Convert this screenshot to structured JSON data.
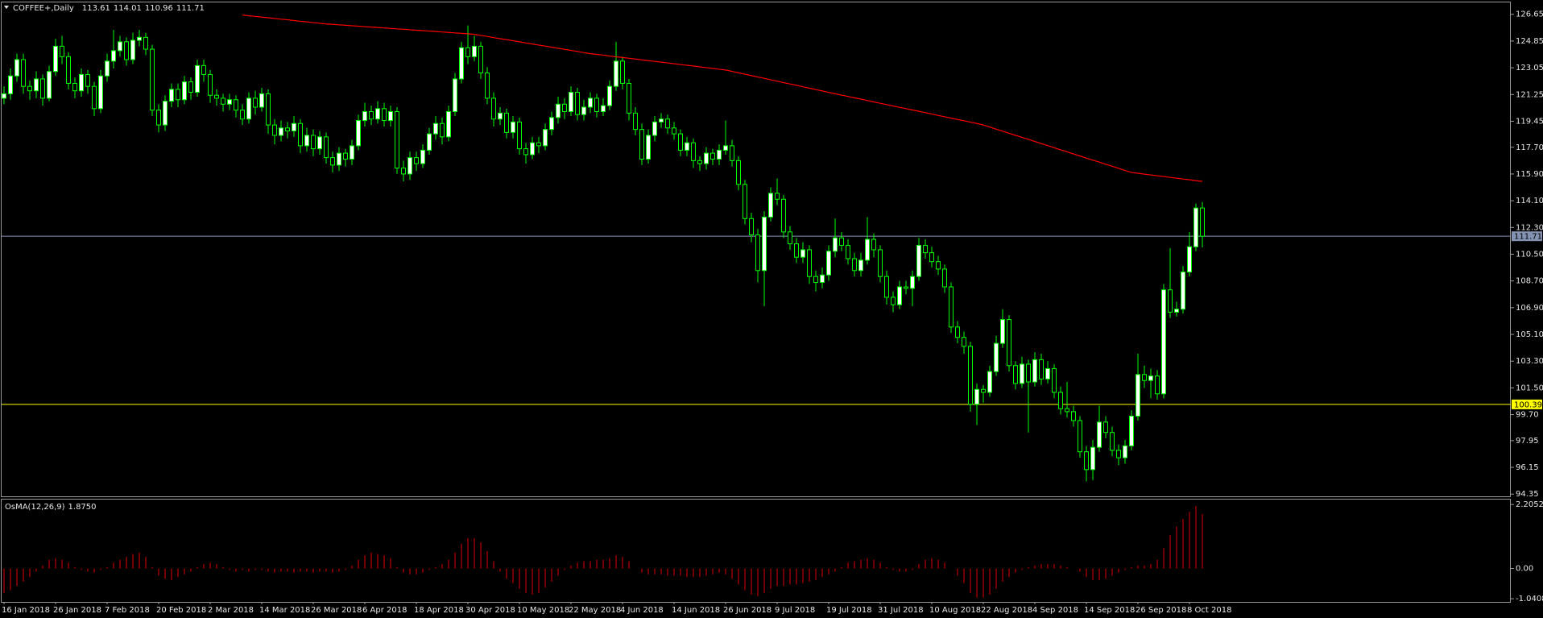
{
  "chart_data": {
    "type": "candlestick",
    "title": "COFFEE+,Daily",
    "categories": [
      "16 Jan 2018",
      null,
      null,
      null,
      null,
      null,
      null,
      null,
      "26 Jan 2018",
      null,
      null,
      null,
      null,
      null,
      null,
      null,
      "7 Feb 2018",
      null,
      null,
      null,
      null,
      null,
      null,
      null,
      "20 Feb 2018",
      null,
      null,
      null,
      null,
      null,
      null,
      null,
      "2 Mar 2018",
      null,
      null,
      null,
      null,
      null,
      null,
      null,
      "14 Mar 2018",
      null,
      null,
      null,
      null,
      null,
      null,
      null,
      "26 Mar 2018",
      null,
      null,
      null,
      null,
      null,
      null,
      null,
      "6 Apr 2018",
      null,
      null,
      null,
      null,
      null,
      null,
      null,
      "18 Apr 2018",
      null,
      null,
      null,
      null,
      null,
      null,
      null,
      "30 Apr 2018",
      null,
      null,
      null,
      null,
      null,
      null,
      null,
      "10 May 2018",
      null,
      null,
      null,
      null,
      null,
      null,
      null,
      "22 May 2018",
      null,
      null,
      null,
      null,
      null,
      null,
      null,
      "4 Jun 2018",
      null,
      null,
      null,
      null,
      null,
      null,
      null,
      "14 Jun 2018",
      null,
      null,
      null,
      null,
      null,
      null,
      null,
      "26 Jun 2018",
      null,
      null,
      null,
      null,
      null,
      null,
      null,
      "9 Jul 2018",
      null,
      null,
      null,
      null,
      null,
      null,
      null,
      "19 Jul 2018",
      null,
      null,
      null,
      null,
      null,
      null,
      null,
      "31 Jul 2018",
      null,
      null,
      null,
      null,
      null,
      null,
      null,
      "10 Aug 2018",
      null,
      null,
      null,
      null,
      null,
      null,
      null,
      "22 Aug 2018",
      null,
      null,
      null,
      null,
      null,
      null,
      null,
      "4 Sep 2018",
      null,
      null,
      null,
      null,
      null,
      null,
      null,
      "14 Sep 2018",
      null,
      null,
      null,
      null,
      null,
      null,
      null,
      "26 Sep 2018",
      null,
      null,
      null,
      null,
      null,
      null,
      null,
      "8 Oct 2018",
      null,
      null
    ],
    "open": [
      121.0,
      121.3,
      122.5,
      123.6,
      121.8,
      121.5,
      122.3,
      121.0,
      122.8,
      124.5,
      123.8,
      122.0,
      121.5,
      122.6,
      121.8,
      120.3,
      122.5,
      123.5,
      124.2,
      124.8,
      123.6,
      124.9,
      125.1,
      124.3,
      120.2,
      119.2,
      120.8,
      121.6,
      120.9,
      122.1,
      121.4,
      123.2,
      122.6,
      121.2,
      121.0,
      120.6,
      120.9,
      120.2,
      119.6,
      121.0,
      120.4,
      121.3,
      119.2,
      118.5,
      119.0,
      118.8,
      119.3,
      117.8,
      118.5,
      117.6,
      118.4,
      117.0,
      116.5,
      117.3,
      116.9,
      117.8,
      119.5,
      120.1,
      119.6,
      120.3,
      119.5,
      120.1,
      116.3,
      115.9,
      117.0,
      116.6,
      117.5,
      118.6,
      119.3,
      118.4,
      120.1,
      122.3,
      124.4,
      123.8,
      124.5,
      122.7,
      121.0,
      119.6,
      120.0,
      118.7,
      119.4,
      117.6,
      117.2,
      118.0,
      117.8,
      118.9,
      119.7,
      120.6,
      120.1,
      121.4,
      119.9,
      120.4,
      121.0,
      120.1,
      120.5,
      121.8,
      123.5,
      122.0,
      120.0,
      118.9,
      116.9,
      118.5,
      119.4,
      119.6,
      119.0,
      118.6,
      117.5,
      118.0,
      116.8,
      116.6,
      117.3,
      116.9,
      117.5,
      117.8,
      116.8,
      115.2,
      112.9,
      111.8,
      109.4,
      113.0,
      114.6,
      114.2,
      112.0,
      111.2,
      110.3,
      110.8,
      109.0,
      108.6,
      109.1,
      110.7,
      111.6,
      111.1,
      110.2,
      109.4,
      110.1,
      111.5,
      110.8,
      109.0,
      107.6,
      107.1,
      108.3,
      108.2,
      109.0,
      111.1,
      110.6,
      110.0,
      109.5,
      108.3,
      105.6,
      104.9,
      104.3,
      100.4,
      101.4,
      101.2,
      102.6,
      104.5,
      106.1,
      103.0,
      101.8,
      103.1,
      101.9,
      103.4,
      102.1,
      102.8,
      101.2,
      100.1,
      99.9,
      99.3,
      97.2,
      96.0,
      97.5,
      99.2,
      98.5,
      97.3,
      96.8,
      97.6,
      99.6,
      102.4,
      102.0,
      102.3,
      101.1,
      108.1,
      106.6,
      106.8,
      109.3,
      111.0,
      113.61
    ],
    "high": [
      121.8,
      123.0,
      124.0,
      124.0,
      122.2,
      122.8,
      122.6,
      123.2,
      125.0,
      125.2,
      124.1,
      122.4,
      123.0,
      122.9,
      122.1,
      122.9,
      124.0,
      125.6,
      125.2,
      125.1,
      125.4,
      125.6,
      125.4,
      124.6,
      120.6,
      121.2,
      122.0,
      122.0,
      122.5,
      122.4,
      123.6,
      123.6,
      122.9,
      121.6,
      121.3,
      121.3,
      121.2,
      120.6,
      121.4,
      121.5,
      121.7,
      121.6,
      119.6,
      119.5,
      119.4,
      119.8,
      119.6,
      119.0,
      118.9,
      118.8,
      118.7,
      117.4,
      117.7,
      117.6,
      118.2,
      119.9,
      120.7,
      120.5,
      120.8,
      120.7,
      120.5,
      120.4,
      116.8,
      117.4,
      117.4,
      117.9,
      119.0,
      119.8,
      119.7,
      120.5,
      122.7,
      124.8,
      125.9,
      125.2,
      124.8,
      123.1,
      121.4,
      120.4,
      120.3,
      119.8,
      119.7,
      118.0,
      118.4,
      118.4,
      119.3,
      120.1,
      121.1,
      121.0,
      121.8,
      121.7,
      120.9,
      121.4,
      121.3,
      121.0,
      122.2,
      124.8,
      123.8,
      122.3,
      120.4,
      119.3,
      118.9,
      119.8,
      120.0,
      119.9,
      119.4,
      118.9,
      118.4,
      118.3,
      117.1,
      117.7,
      117.6,
      117.9,
      119.5,
      118.2,
      117.1,
      115.5,
      113.3,
      112.2,
      113.4,
      115.0,
      115.6,
      114.5,
      112.4,
      111.6,
      111.3,
      111.1,
      109.4,
      109.6,
      111.1,
      112.9,
      112.0,
      111.5,
      110.6,
      110.6,
      113.0,
      111.9,
      111.1,
      109.4,
      108.0,
      108.7,
      108.7,
      109.4,
      111.6,
      111.5,
      111.0,
      110.4,
      109.8,
      108.6,
      106.0,
      105.3,
      104.6,
      101.8,
      101.7,
      103.0,
      105.0,
      106.8,
      106.4,
      103.3,
      103.6,
      103.4,
      103.9,
      103.8,
      103.3,
      103.1,
      101.6,
      101.9,
      100.3,
      99.6,
      97.6,
      98.0,
      100.3,
      99.6,
      98.9,
      97.7,
      98.0,
      100.0,
      103.8,
      103.0,
      102.8,
      102.7,
      108.5,
      110.9,
      107.3,
      109.7,
      112.0,
      113.9,
      114.01
    ],
    "low": [
      120.6,
      120.9,
      122.1,
      121.3,
      120.9,
      121.0,
      120.5,
      120.8,
      122.5,
      123.3,
      121.6,
      121.0,
      121.1,
      121.3,
      119.8,
      120.0,
      122.1,
      123.0,
      123.8,
      123.2,
      123.3,
      124.5,
      123.9,
      119.8,
      118.7,
      118.8,
      120.4,
      120.4,
      120.6,
      120.9,
      121.1,
      122.1,
      120.7,
      120.5,
      120.1,
      120.2,
      119.7,
      119.2,
      119.3,
      119.9,
      120.1,
      118.6,
      117.9,
      118.1,
      118.3,
      118.4,
      117.3,
      117.4,
      117.1,
      117.2,
      116.6,
      116.0,
      116.1,
      116.4,
      116.5,
      117.5,
      119.1,
      119.2,
      119.3,
      119.1,
      119.1,
      115.9,
      115.4,
      115.5,
      116.1,
      116.3,
      117.2,
      118.2,
      117.9,
      118.1,
      119.8,
      122.0,
      123.3,
      123.5,
      122.3,
      120.6,
      119.1,
      119.2,
      118.3,
      118.3,
      117.2,
      116.6,
      116.9,
      117.3,
      117.5,
      118.5,
      119.3,
      119.6,
      119.8,
      119.5,
      119.5,
      120.0,
      119.7,
      119.8,
      120.2,
      121.5,
      121.6,
      119.5,
      118.5,
      116.5,
      116.6,
      118.1,
      119.0,
      118.6,
      118.2,
      117.1,
      117.1,
      116.3,
      116.1,
      116.2,
      116.5,
      116.5,
      117.2,
      116.4,
      114.8,
      112.5,
      111.3,
      108.6,
      107.0,
      112.7,
      113.8,
      111.6,
      110.8,
      109.9,
      109.9,
      108.5,
      108.0,
      108.2,
      108.7,
      110.3,
      110.7,
      109.8,
      109.0,
      109.0,
      109.8,
      110.3,
      108.6,
      107.1,
      106.6,
      106.8,
      107.8,
      107.0,
      108.7,
      110.2,
      109.6,
      109.1,
      107.9,
      105.2,
      104.5,
      103.8,
      99.9,
      99.0,
      100.5,
      100.9,
      102.3,
      104.2,
      102.6,
      101.4,
      101.5,
      98.5,
      101.6,
      101.7,
      101.8,
      100.8,
      99.7,
      99.5,
      98.9,
      96.8,
      95.2,
      95.3,
      97.2,
      98.1,
      96.9,
      96.3,
      96.4,
      97.3,
      99.3,
      101.5,
      100.8,
      100.7,
      100.8,
      106.2,
      106.3,
      106.5,
      109.0,
      110.7,
      110.96
    ],
    "close": [
      121.3,
      122.5,
      123.6,
      121.8,
      121.5,
      122.3,
      121.0,
      122.8,
      124.5,
      123.8,
      122.0,
      121.5,
      122.6,
      121.8,
      120.3,
      122.5,
      123.5,
      124.2,
      124.8,
      123.6,
      124.9,
      125.1,
      124.3,
      120.2,
      119.2,
      120.8,
      121.6,
      120.9,
      122.1,
      121.4,
      123.2,
      122.6,
      121.2,
      121.0,
      120.6,
      120.9,
      120.2,
      119.6,
      121.0,
      120.4,
      121.3,
      119.2,
      118.5,
      119.0,
      118.8,
      119.3,
      117.8,
      118.5,
      117.6,
      118.4,
      117.0,
      116.5,
      117.3,
      116.9,
      117.8,
      119.5,
      120.1,
      119.6,
      120.3,
      119.5,
      120.1,
      116.3,
      115.9,
      117.0,
      116.6,
      117.5,
      118.6,
      119.3,
      118.4,
      120.1,
      122.3,
      124.4,
      123.8,
      124.5,
      122.7,
      121.0,
      119.6,
      120.0,
      118.7,
      119.4,
      117.6,
      117.2,
      118.0,
      117.8,
      118.9,
      119.7,
      120.6,
      120.1,
      121.4,
      119.9,
      120.4,
      121.0,
      120.1,
      120.5,
      121.8,
      123.5,
      122.0,
      120.0,
      118.9,
      116.9,
      118.5,
      119.4,
      119.6,
      119.0,
      118.6,
      117.5,
      118.0,
      116.8,
      116.6,
      117.3,
      116.9,
      117.5,
      117.8,
      116.8,
      115.2,
      112.9,
      111.8,
      109.4,
      113.0,
      114.6,
      114.2,
      112.0,
      111.2,
      110.3,
      110.8,
      109.0,
      108.6,
      109.1,
      110.7,
      111.6,
      111.1,
      110.2,
      109.4,
      110.1,
      111.5,
      110.8,
      109.0,
      107.6,
      107.1,
      108.3,
      108.2,
      109.0,
      111.1,
      110.6,
      110.0,
      109.5,
      108.3,
      105.6,
      104.9,
      104.3,
      100.4,
      101.4,
      101.2,
      102.6,
      104.5,
      106.1,
      103.0,
      101.8,
      103.1,
      101.9,
      103.4,
      102.1,
      102.8,
      101.2,
      100.1,
      99.9,
      99.3,
      97.2,
      96.0,
      97.5,
      99.2,
      98.5,
      97.3,
      96.8,
      97.6,
      99.6,
      102.4,
      102.0,
      102.3,
      101.1,
      108.1,
      106.6,
      106.8,
      109.3,
      111.0,
      113.61,
      111.71
    ],
    "bull_color": "#ffffff",
    "bear_color": "#000000",
    "wick_color": "#00ff00",
    "ma": {
      "color": "#ff0000",
      "values": [
        null,
        null,
        null,
        null,
        null,
        null,
        null,
        null,
        null,
        null,
        null,
        null,
        null,
        null,
        null,
        null,
        null,
        null,
        null,
        null,
        null,
        null,
        null,
        null,
        null,
        null,
        null,
        null,
        null,
        null,
        null,
        null,
        null,
        null,
        null,
        null,
        null,
        126.6,
        126.55,
        126.51,
        126.46,
        126.42,
        126.37,
        126.32,
        126.28,
        126.23,
        126.18,
        126.14,
        126.09,
        126.05,
        126.0,
        125.97,
        125.94,
        125.91,
        125.88,
        125.85,
        125.82,
        125.79,
        125.76,
        125.73,
        125.7,
        125.67,
        125.64,
        125.61,
        125.58,
        125.55,
        125.52,
        125.49,
        125.46,
        125.43,
        125.4,
        125.37,
        125.34,
        125.3,
        125.23,
        125.16,
        125.08,
        125.01,
        124.94,
        124.87,
        124.8,
        124.72,
        124.65,
        124.58,
        124.51,
        124.44,
        124.36,
        124.29,
        124.22,
        124.15,
        124.07,
        124.0,
        123.95,
        123.9,
        123.84,
        123.79,
        123.74,
        123.69,
        123.64,
        123.58,
        123.53,
        123.48,
        123.43,
        123.38,
        123.32,
        123.27,
        123.22,
        123.17,
        123.11,
        123.06,
        123.01,
        122.95,
        122.9,
        122.81,
        122.71,
        122.62,
        122.52,
        122.43,
        122.34,
        122.24,
        122.15,
        122.05,
        121.96,
        121.87,
        121.77,
        121.68,
        121.58,
        121.49,
        121.39,
        121.3,
        121.21,
        121.12,
        121.03,
        120.94,
        120.85,
        120.75,
        120.66,
        120.57,
        120.48,
        120.39,
        120.3,
        120.21,
        120.12,
        120.03,
        119.94,
        119.84,
        119.75,
        119.66,
        119.57,
        119.48,
        119.39,
        119.3,
        119.2,
        119.06,
        118.92,
        118.78,
        118.64,
        118.5,
        118.37,
        118.23,
        118.09,
        117.95,
        117.81,
        117.67,
        117.53,
        117.39,
        117.25,
        117.11,
        116.97,
        116.83,
        116.7,
        116.56,
        116.42,
        116.28,
        116.14,
        116.0,
        115.95,
        115.89,
        115.84,
        115.78,
        115.73,
        115.67,
        115.62,
        115.56,
        115.51,
        115.45,
        115.4
      ]
    },
    "hlines": [
      {
        "value": 111.71,
        "color": "#8593b3"
      },
      {
        "value": 100.39,
        "color": "#ffff00"
      }
    ],
    "ylim": [
      94.2,
      127.45
    ],
    "yticks": [
      126.65,
      124.85,
      123.05,
      121.25,
      119.45,
      {
        "value": 117.7,
        "label": "117.70"
      },
      {
        "value": 115.9,
        "label": "115.90"
      },
      {
        "value": 114.1,
        "label": "114.10"
      },
      {
        "value": 112.3,
        "label": "112.30"
      },
      {
        "value": 110.5,
        "label": "110.50"
      },
      {
        "value": 108.7,
        "label": "108.70"
      },
      {
        "value": 106.9,
        "label": "106.90"
      },
      {
        "value": 105.1,
        "label": "105.10"
      },
      {
        "value": 103.3,
        "label": "103.30"
      },
      {
        "value": 101.5,
        "label": "101.50"
      },
      {
        "value": 99.7,
        "label": "99.70"
      },
      97.95,
      96.15,
      94.35
    ],
    "indicator": {
      "type": "bar",
      "name": "OsMA(12,26,9)",
      "value_label": "1.8750",
      "color": "#c00000",
      "values": [
        -0.85,
        -0.75,
        -0.6,
        -0.45,
        -0.3,
        -0.1,
        0.1,
        0.3,
        0.35,
        0.3,
        0.2,
        0.05,
        -0.05,
        -0.1,
        -0.15,
        -0.05,
        0.05,
        0.2,
        0.3,
        0.4,
        0.5,
        0.55,
        0.4,
        0.05,
        -0.25,
        -0.35,
        -0.4,
        -0.3,
        -0.2,
        -0.1,
        0.05,
        0.15,
        0.2,
        0.15,
        0.05,
        -0.05,
        -0.1,
        -0.05,
        -0.1,
        -0.05,
        -0.05,
        -0.1,
        -0.15,
        -0.1,
        -0.1,
        -0.15,
        -0.1,
        -0.1,
        -0.15,
        -0.1,
        -0.1,
        -0.15,
        -0.1,
        -0.05,
        0.1,
        0.3,
        0.45,
        0.55,
        0.5,
        0.45,
        0.35,
        0.05,
        -0.15,
        -0.2,
        -0.2,
        -0.15,
        -0.05,
        0.05,
        0.15,
        0.3,
        0.55,
        0.85,
        1.05,
        1.05,
        0.9,
        0.6,
        0.25,
        -0.1,
        -0.35,
        -0.5,
        -0.7,
        -0.85,
        -0.9,
        -0.85,
        -0.65,
        -0.45,
        -0.25,
        -0.05,
        0.1,
        0.2,
        0.25,
        0.25,
        0.3,
        0.3,
        0.35,
        0.45,
        0.4,
        0.25,
        0.0,
        -0.15,
        -0.2,
        -0.2,
        -0.2,
        -0.25,
        -0.25,
        -0.25,
        -0.3,
        -0.3,
        -0.3,
        -0.25,
        -0.2,
        -0.15,
        -0.2,
        -0.35,
        -0.55,
        -0.75,
        -0.9,
        -0.95,
        -0.85,
        -0.7,
        -0.6,
        -0.6,
        -0.55,
        -0.55,
        -0.5,
        -0.45,
        -0.4,
        -0.3,
        -0.2,
        -0.1,
        0.05,
        0.2,
        0.25,
        0.3,
        0.35,
        0.3,
        0.2,
        0.05,
        -0.05,
        -0.1,
        -0.1,
        -0.05,
        0.15,
        0.3,
        0.35,
        0.3,
        0.2,
        0.0,
        -0.25,
        -0.5,
        -0.85,
        -1.0,
        -1.0,
        -0.9,
        -0.7,
        -0.45,
        -0.3,
        -0.15,
        -0.05,
        0.05,
        0.1,
        0.15,
        0.15,
        0.15,
        0.1,
        0.05,
        0.0,
        -0.1,
        -0.3,
        -0.4,
        -0.4,
        -0.35,
        -0.25,
        -0.15,
        -0.05,
        0.05,
        0.1,
        0.1,
        0.15,
        0.3,
        0.7,
        1.15,
        1.45,
        1.7,
        1.95,
        2.15,
        1.875
      ],
      "ylim": [
        -1.15,
        2.375
      ],
      "yticks": [
        2.2052,
        {
          "value": 0,
          "label": "0.00"
        },
        -1.0408
      ]
    }
  }
}
